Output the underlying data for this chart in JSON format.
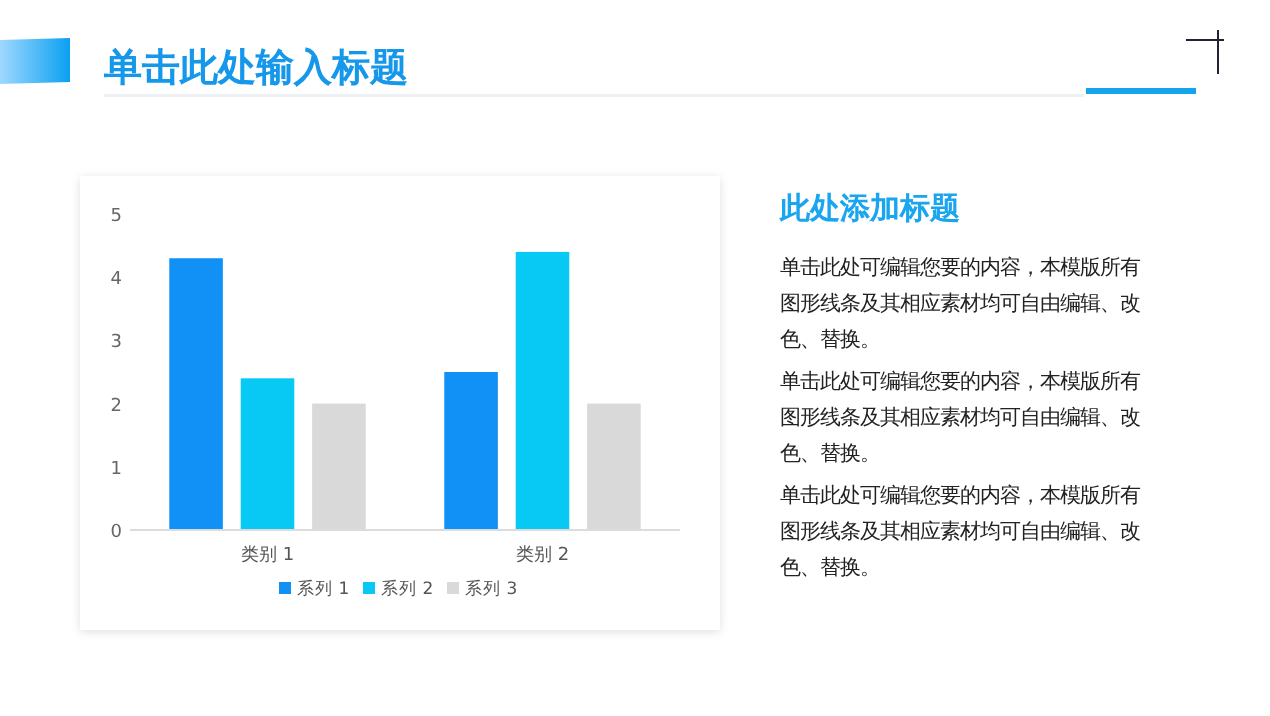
{
  "chart_data": {
    "type": "bar",
    "title": "单击此处输入标题",
    "subtitle": "此处添加标题",
    "annotations": [
      "单击此处可编辑您要的内容，本模版所有图形线条及其相应素材均可自由编辑、改色、替换。",
      "单击此处可编辑您要的内容，本模版所有图形线条及其相应素材均可自由编辑、改色、替换。",
      "单击此处可编辑您要的内容，本模版所有图形线条及其相应素材均可自由编辑、改色、替换。"
    ],
    "categories": [
      "类别 1",
      "类别 2"
    ],
    "series": [
      {
        "name": "系列 1",
        "color": "#1191f5",
        "values": [
          4.3,
          2.5
        ]
      },
      {
        "name": "系列 2",
        "color": "#08c8f4",
        "values": [
          2.4,
          4.4
        ]
      },
      {
        "name": "系列 3",
        "color": "#d9d9d9",
        "values": [
          2,
          2
        ]
      }
    ],
    "ylim": [
      0,
      5
    ],
    "yticks": [
      0,
      1,
      2,
      3,
      4,
      5
    ],
    "grid": false,
    "legend": "bottom"
  }
}
